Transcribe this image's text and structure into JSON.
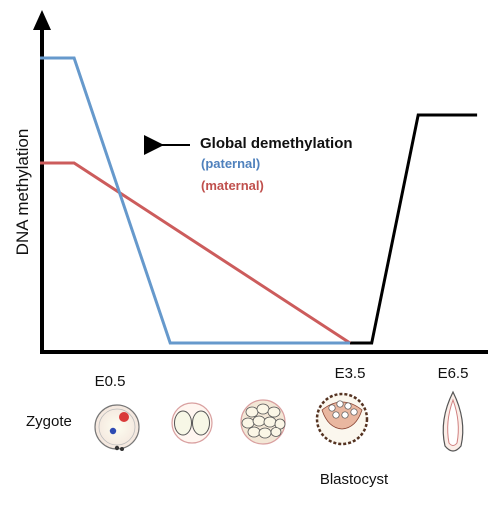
{
  "chart_data": {
    "type": "line",
    "ylabel": "DNA methylation",
    "annotation": {
      "title": "Global demethylation",
      "lines": [
        "(paternal)",
        "(maternal)"
      ]
    },
    "stage_labels": [
      "E0.5",
      "E3.5",
      "E6.5"
    ],
    "cell_labels": [
      "Zygote",
      "Blastocyst"
    ],
    "ylim": [
      0,
      1
    ],
    "series": [
      {
        "name": "(paternal)",
        "color": "#6699cc",
        "points": [
          [
            0.0,
            0.95
          ],
          [
            0.11,
            0.95
          ],
          [
            0.42,
            0.0
          ],
          [
            1.0,
            0.0
          ]
        ]
      },
      {
        "name": "(maternal)",
        "color": "#cc5c5c",
        "points": [
          [
            0.0,
            0.6
          ],
          [
            0.11,
            0.6
          ],
          [
            1.0,
            0.0
          ]
        ]
      },
      {
        "name": "",
        "color": "#000000",
        "points": [
          [
            0.87,
            0.0
          ],
          [
            1.07,
            0.0
          ],
          [
            1.22,
            0.76
          ],
          [
            1.41,
            0.76
          ]
        ]
      }
    ],
    "colors": {
      "paternal": "#4f81bd",
      "maternal": "#c0504d",
      "axis": "#000000"
    }
  }
}
